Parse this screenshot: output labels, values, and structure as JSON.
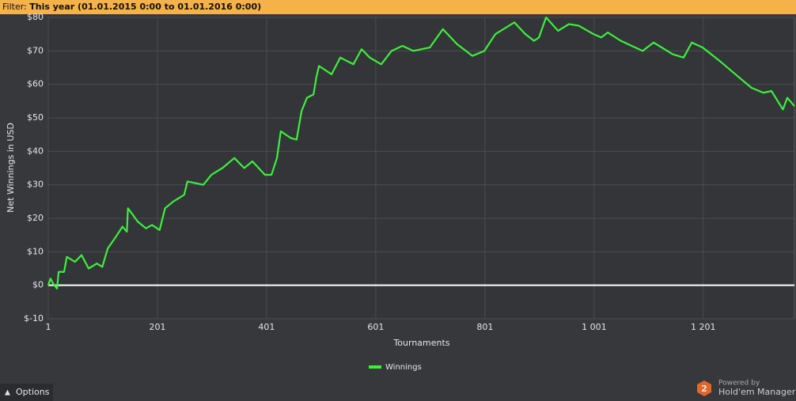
{
  "filter": {
    "label": "Filter:",
    "value": "This year (01.01.2015 0:00 to 01.01.2016 0:00)"
  },
  "chart_data": {
    "type": "line",
    "xlabel": "Tournaments",
    "ylabel": "Net Winnings in USD",
    "x": [
      1,
      5,
      10,
      17,
      20,
      30,
      35,
      50,
      62,
      75,
      90,
      100,
      110,
      125,
      137,
      145,
      147,
      165,
      180,
      191,
      205,
      215,
      230,
      250,
      256,
      285,
      300,
      320,
      342,
      360,
      375,
      398,
      410,
      420,
      427,
      445,
      456,
      465,
      475,
      487,
      492,
      497,
      520,
      536,
      560,
      575,
      590,
      611,
      630,
      650,
      670,
      700,
      724,
      750,
      778,
      800,
      820,
      855,
      875,
      891,
      900,
      913,
      935,
      955,
      973,
      1000,
      1014,
      1026,
      1050,
      1090,
      1110,
      1145,
      1165,
      1180,
      1200,
      1231,
      1260,
      1289,
      1311,
      1326,
      1347,
      1355,
      1368
    ],
    "series": [
      {
        "name": "Winnings",
        "color": "#3cf03a",
        "values": [
          0,
          2,
          0.5,
          -1,
          4,
          4,
          8.5,
          7,
          9,
          5,
          6.5,
          5.5,
          11,
          14.5,
          17.5,
          16,
          23,
          19,
          17,
          18,
          16.5,
          23,
          25,
          27,
          31,
          30,
          33,
          35,
          38,
          35,
          37,
          33,
          33,
          38,
          46,
          44,
          43.5,
          52,
          56,
          57,
          62,
          65.5,
          63,
          68,
          66,
          70.5,
          68,
          66,
          70,
          71.5,
          70,
          71,
          76.5,
          72,
          68.5,
          70,
          75,
          78.5,
          75,
          73,
          74,
          80,
          76,
          78,
          77.5,
          75,
          74,
          75.5,
          73,
          70,
          72.5,
          69,
          68,
          72.5,
          71,
          67,
          63,
          59,
          57.5,
          58,
          52.5,
          56,
          53.5
        ]
      }
    ],
    "xlim": [
      1,
      1368
    ],
    "xticks": [
      1,
      201,
      401,
      601,
      801,
      {
        "value": 1001,
        "label": "1 001"
      },
      {
        "value": 1201,
        "label": "1 201"
      }
    ],
    "ylim": [
      -10,
      80
    ],
    "yticks": [
      {
        "value": -10,
        "label": "$-10"
      },
      {
        "value": 0,
        "label": "$0"
      },
      {
        "value": 10,
        "label": "$10"
      },
      {
        "value": 20,
        "label": "$20"
      },
      {
        "value": 30,
        "label": "$30"
      },
      {
        "value": 40,
        "label": "$40"
      },
      {
        "value": 50,
        "label": "$50"
      },
      {
        "value": 60,
        "label": "$60"
      },
      {
        "value": 70,
        "label": "$70"
      },
      {
        "value": 80,
        "label": "$80"
      }
    ],
    "grid": true,
    "legend": "bottom"
  },
  "footer": {
    "options": "Options",
    "powered": "Powered by",
    "brand": "Hold'em Manager"
  }
}
